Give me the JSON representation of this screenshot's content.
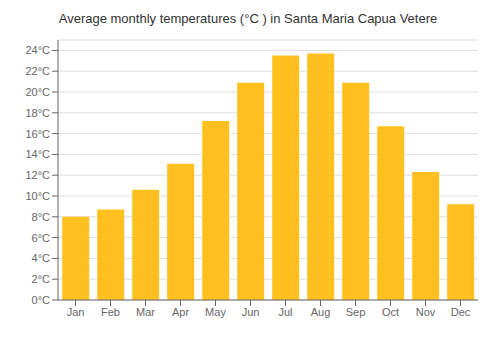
{
  "chart_data": {
    "type": "bar",
    "title": "Average monthly temperatures (°C ) in Santa Maria Capua Vetere",
    "categories": [
      "Jan",
      "Feb",
      "Mar",
      "Apr",
      "May",
      "Jun",
      "Jul",
      "Aug",
      "Sep",
      "Oct",
      "Nov",
      "Dec"
    ],
    "values": [
      8.0,
      8.7,
      10.6,
      13.1,
      17.2,
      20.9,
      23.5,
      23.7,
      20.9,
      16.7,
      12.3,
      9.2
    ],
    "color": "#FFC020",
    "ylim": [
      0,
      25
    ],
    "yticks": [
      {
        "value": 0,
        "label": "0°C"
      },
      {
        "value": 2,
        "label": "2°C"
      },
      {
        "value": 4,
        "label": "4°C"
      },
      {
        "value": 6,
        "label": "6°C"
      },
      {
        "value": 8,
        "label": "8°C"
      },
      {
        "value": 10,
        "label": "10°C"
      },
      {
        "value": 12,
        "label": "12°C"
      },
      {
        "value": 14,
        "label": "14°C"
      },
      {
        "value": 16,
        "label": "16°C"
      },
      {
        "value": 18,
        "label": "18°C"
      },
      {
        "value": 20,
        "label": "20°C"
      },
      {
        "value": 22,
        "label": "22°C"
      },
      {
        "value": 24,
        "label": "24°C"
      }
    ],
    "grid": true
  }
}
